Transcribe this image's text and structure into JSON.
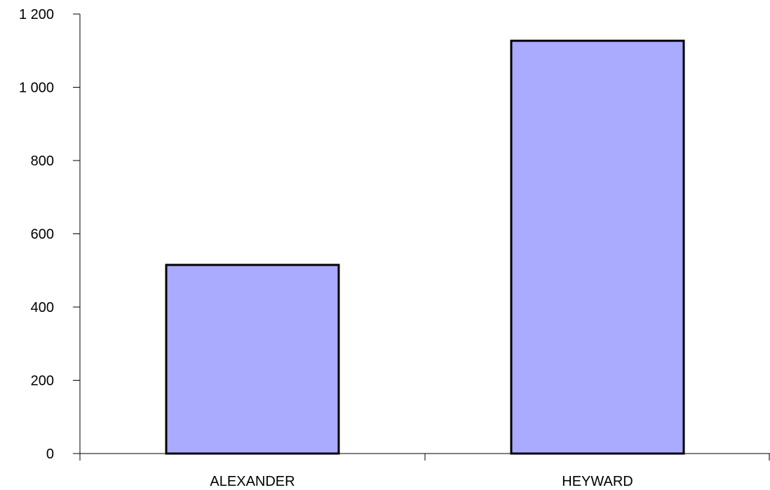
{
  "chart_data": {
    "type": "bar",
    "categories": [
      "ALEXANDER",
      "HEYWARD"
    ],
    "series": [
      {
        "values": [
          515,
          1127
        ]
      }
    ],
    "ylim": [
      0,
      1200
    ],
    "yticks": [
      0,
      200,
      400,
      600,
      800,
      1000,
      1200
    ],
    "ytick_labels": [
      "0",
      "200",
      "400",
      "600",
      "800",
      "1 000",
      "1 200"
    ],
    "grid": false,
    "legend": "none",
    "bar_color": "#aaaaff",
    "bar_edge_color": "#000000"
  }
}
